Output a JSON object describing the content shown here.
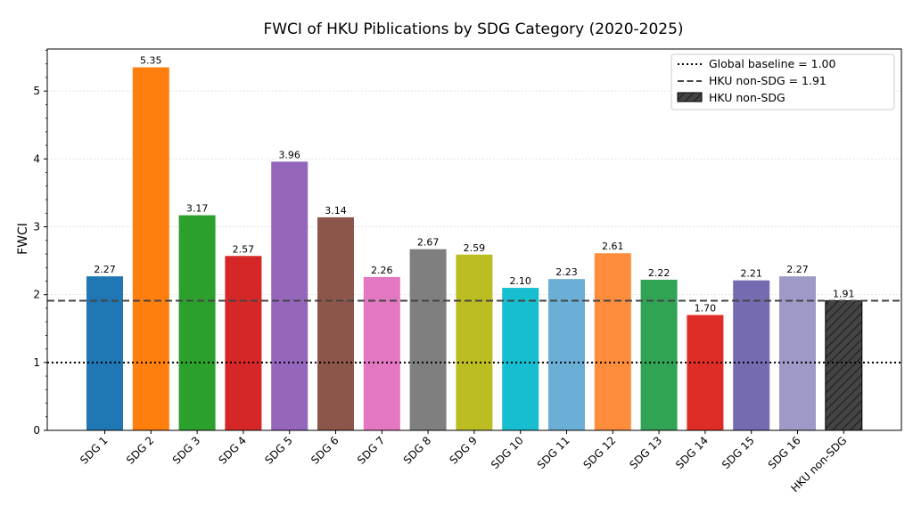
{
  "chart_data": {
    "type": "bar",
    "title": "FWCI of HKU Piblications by SDG Category (2020-2025)",
    "xlabel": "",
    "ylabel": "FWCI",
    "ylim": [
      0,
      5.62
    ],
    "yticks": [
      0,
      1,
      2,
      3,
      4,
      5
    ],
    "categories": [
      "SDG 1",
      "SDG 2",
      "SDG 3",
      "SDG 4",
      "SDG 5",
      "SDG 6",
      "SDG 7",
      "SDG 8",
      "SDG 9",
      "SDG 10",
      "SDG 11",
      "SDG 12",
      "SDG 13",
      "SDG 14",
      "SDG 15",
      "SDG 16",
      "HKU non-SDG"
    ],
    "values": [
      2.27,
      5.35,
      3.17,
      2.57,
      3.96,
      3.14,
      2.26,
      2.67,
      2.59,
      2.1,
      2.23,
      2.61,
      2.22,
      1.7,
      2.21,
      2.27,
      1.91
    ],
    "labels": [
      "2.27",
      "5.35",
      "3.17",
      "2.57",
      "3.96",
      "3.14",
      "2.26",
      "2.67",
      "2.59",
      "2.10",
      "2.23",
      "2.61",
      "2.22",
      "1.70",
      "2.21",
      "2.27",
      "1.91"
    ],
    "colors": [
      "#1f77b4",
      "#ff7f0e",
      "#2ca02c",
      "#d62728",
      "#9467bd",
      "#8c564b",
      "#e377c2",
      "#7f7f7f",
      "#bcbd22",
      "#17becf",
      "#6baed6",
      "#fd8d3c",
      "#31a354",
      "#de2d26",
      "#756bb1",
      "#9e9ac8",
      "#444444"
    ],
    "hatched_index": 16,
    "reference_lines": [
      {
        "name": "Global baseline",
        "value": 1.0,
        "style": "dotted",
        "color": "#000000"
      },
      {
        "name": "HKU non-SDG",
        "value": 1.91,
        "style": "dashed",
        "color": "#444444"
      }
    ],
    "legend": {
      "position": "top-right",
      "entries": [
        "Global baseline = 1.00",
        "HKU non-SDG = 1.91",
        "HKU non-SDG"
      ]
    },
    "grid": "y"
  }
}
